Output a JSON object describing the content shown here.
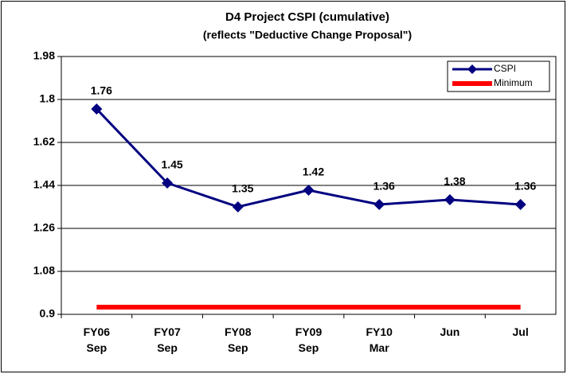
{
  "chart_data": {
    "type": "line",
    "title": "D4 Project CSPI (cumulative)",
    "subtitle": "(reflects \"Deductive Change Proposal\")",
    "categories": [
      "FY06\nSep",
      "FY07\nSep",
      "FY08\nSep",
      "FY09\nSep",
      "FY10\nMar",
      "Jun",
      "Jul"
    ],
    "series": [
      {
        "name": "CSPI",
        "color": "#000080",
        "values": [
          1.76,
          1.45,
          1.35,
          1.42,
          1.36,
          1.38,
          1.36
        ],
        "marker": "diamond",
        "data_labels": true
      },
      {
        "name": "Minimum",
        "color": "#ff0000",
        "values": [
          0.93,
          0.93,
          0.93,
          0.93,
          0.93,
          0.93,
          0.93
        ],
        "marker": "none",
        "data_labels": false
      }
    ],
    "ylim": [
      0.9,
      1.98
    ],
    "yticks": [
      0.9,
      1.08,
      1.26,
      1.44,
      1.62,
      1.8,
      1.98
    ],
    "grid": true,
    "legend": "upper right"
  }
}
